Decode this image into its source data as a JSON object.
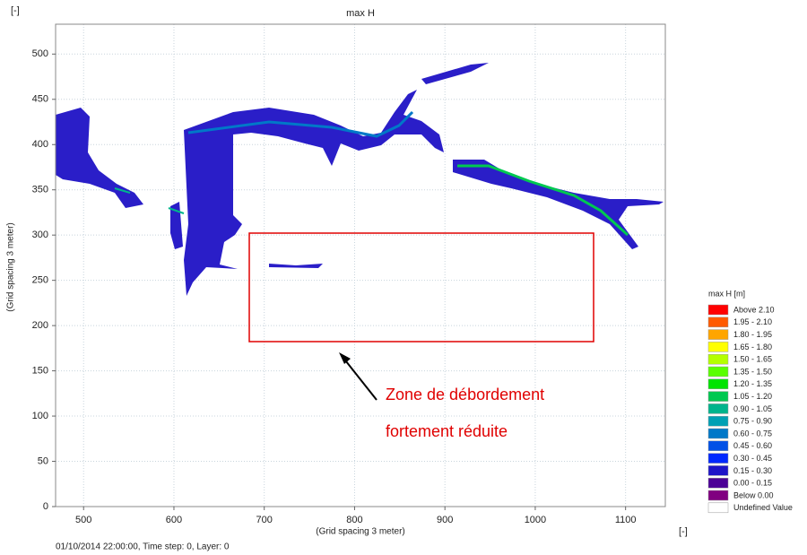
{
  "chart_data": {
    "type": "map",
    "title": "max H",
    "unit_top": "[-]",
    "unit_right": "[-]",
    "x_label": "(Grid spacing 3 meter)",
    "y_label": "(Grid spacing 3 meter)",
    "xlim": [
      469,
      1144
    ],
    "ylim": [
      0,
      533
    ],
    "xticks": [
      500,
      600,
      700,
      800,
      900,
      1000,
      1100
    ],
    "yticks": [
      0,
      50,
      100,
      150,
      200,
      250,
      300,
      350,
      400,
      450,
      500
    ],
    "grid": true,
    "legend": {
      "title": "max H [m]",
      "entries": [
        {
          "label": "Above 2.10",
          "color": "#ff0000"
        },
        {
          "label": "1.95 - 2.10",
          "color": "#ff5a00"
        },
        {
          "label": "1.80 - 1.95",
          "color": "#ffa500"
        },
        {
          "label": "1.65 - 1.80",
          "color": "#ffff00"
        },
        {
          "label": "1.50 - 1.65",
          "color": "#b4ff00"
        },
        {
          "label": "1.35 - 1.50",
          "color": "#5aff00"
        },
        {
          "label": "1.20 - 1.35",
          "color": "#00e400"
        },
        {
          "label": "1.05 - 1.20",
          "color": "#00c850"
        },
        {
          "label": "0.90 - 1.05",
          "color": "#00b48c"
        },
        {
          "label": "0.75 - 0.90",
          "color": "#00a0b4"
        },
        {
          "label": "0.60 - 0.75",
          "color": "#0078c8"
        },
        {
          "label": "0.45 - 0.60",
          "color": "#0050e6"
        },
        {
          "label": "0.30 - 0.45",
          "color": "#0028ff"
        },
        {
          "label": "0.15 - 0.30",
          "color": "#1e14c8"
        },
        {
          "label": "0.00 - 0.15",
          "color": "#4b0096"
        },
        {
          "label": "Below 0.00",
          "color": "#800080"
        },
        {
          "label": "Undefined Value",
          "color": "#ffffff"
        }
      ]
    },
    "annotation": [
      "Zone de débordement",
      "fortement réduite"
    ],
    "footer": "01/10/2014 22:00:00, Time step: 0, Layer: 0"
  }
}
